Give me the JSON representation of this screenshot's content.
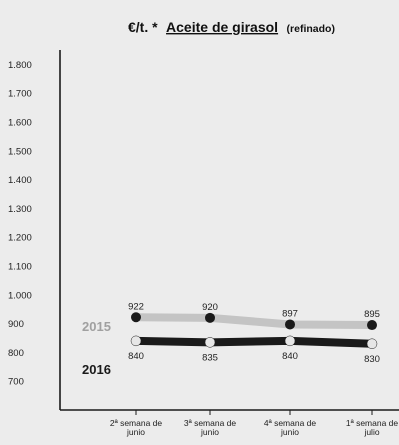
{
  "chart_data": {
    "type": "line",
    "title_unit": "€/t. *",
    "title": "Aceite de girasol",
    "subtitle": "(refinado)",
    "categories": [
      "2ª semana de junio",
      "3ª semana de junio",
      "4ª semana de junio",
      "1ª semana de julio"
    ],
    "category_lines": [
      [
        "2ª semana de",
        "junio"
      ],
      [
        "3ª semana de",
        "junio"
      ],
      [
        "4ª semana de",
        "junio"
      ],
      [
        "1ª semana de",
        "julio"
      ]
    ],
    "y_ticks": [
      "700",
      "800",
      "900",
      "1.000",
      "1.100",
      "1.200",
      "1.300",
      "1.400",
      "1.500",
      "1.600",
      "1.700",
      "1.800"
    ],
    "ylim": [
      600,
      1850
    ],
    "grid": false,
    "series": [
      {
        "name": "2015",
        "values": [
          922,
          920,
          897,
          895
        ],
        "line_color": "#c4c4c4",
        "marker_color": "#1a1a1a",
        "label_position": "above"
      },
      {
        "name": "2016",
        "values": [
          840,
          835,
          840,
          830
        ],
        "line_color": "#1a1a1a",
        "marker_color": "#e6e6e6",
        "label_position": "below"
      }
    ]
  }
}
